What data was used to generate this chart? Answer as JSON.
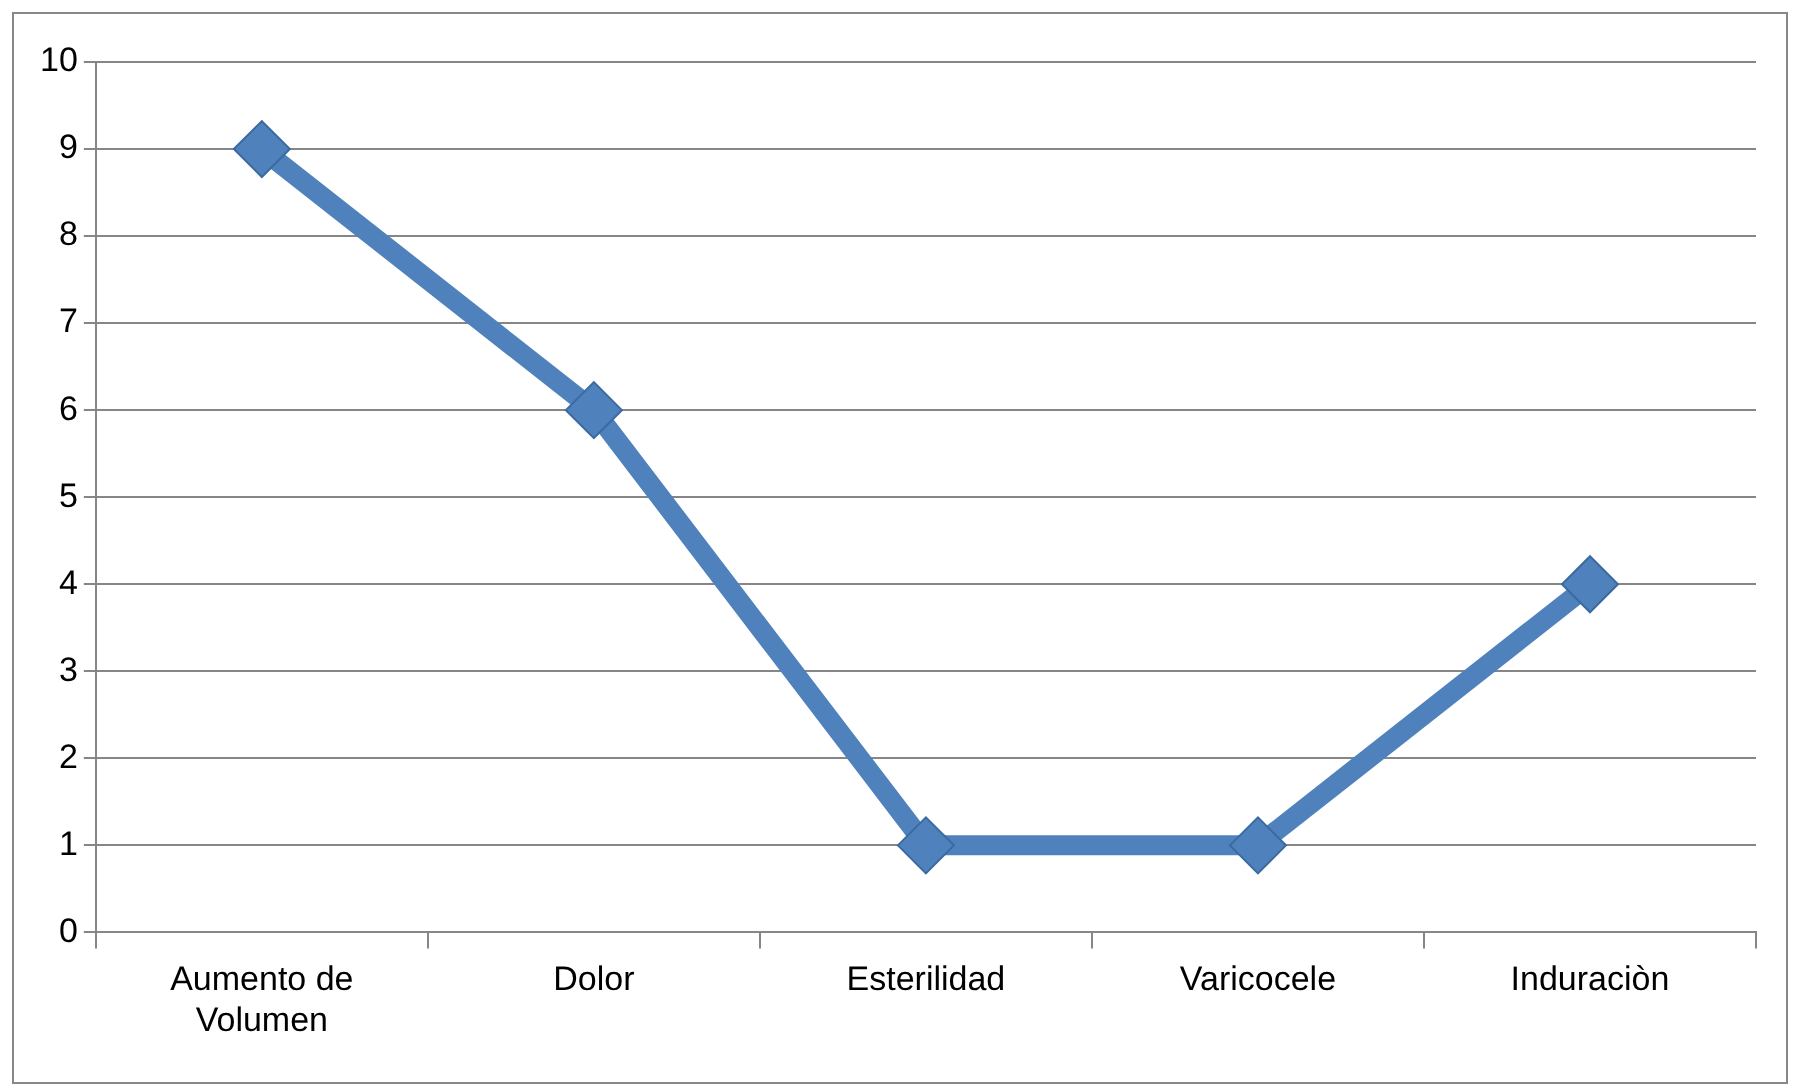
{
  "chart_data": {
    "type": "line",
    "categories": [
      "Aumento de Volumen",
      "Dolor",
      "Esterilidad",
      "Varicocele",
      "Induraciòn"
    ],
    "series": [
      {
        "color": "#4f81bd",
        "values": [
          9,
          6,
          1,
          1,
          4
        ]
      }
    ],
    "ylim": [
      0,
      10
    ],
    "yticks": [
      0,
      1,
      2,
      3,
      4,
      5,
      6,
      7,
      8,
      9,
      10
    ],
    "grid": "y",
    "legend": false,
    "marker": "diamond",
    "line_style": "solid"
  }
}
